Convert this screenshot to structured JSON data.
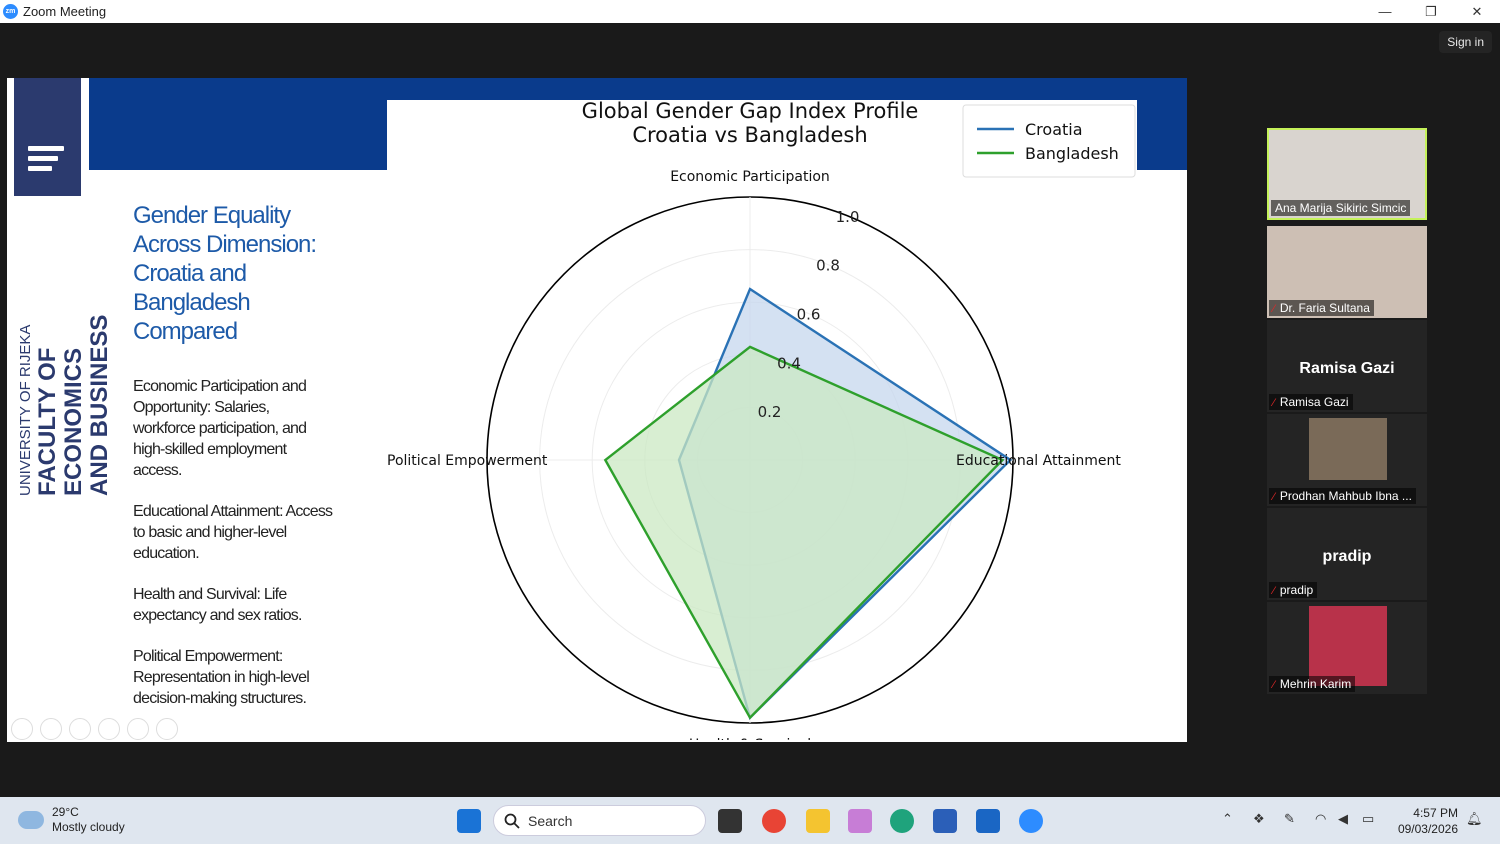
{
  "window": {
    "title": "Zoom Meeting",
    "app_icon_text": "zm",
    "minimize": "—",
    "restore": "❐",
    "close": "✕"
  },
  "meeting": {
    "signin_label": "Sign in"
  },
  "slide": {
    "vertical_line1": "UNIVERSITY OF RIJEKA",
    "vertical_line2": "FACULTY OF ECONOMICS",
    "vertical_line3": "AND BUSINESS",
    "heading": "Gender Equality Across Dimension: Croatia and Bangladesh Compared",
    "paragraphs": [
      "Economic Participation and Opportunity: Salaries, workforce participation, and high-skilled employment access.",
      "Educational Attainment: Access to basic and higher-level education.",
      "Health and Survival: Life expectancy and sex ratios.",
      "Political Empowerment: Representation in high-level decision-making structures."
    ]
  },
  "chart_data": {
    "type": "radar",
    "title_line1": "Global Gender Gap Index Profile",
    "title_line2": "Croatia vs Bangladesh",
    "axes": [
      "Economic Participation",
      "Educational Attainment",
      "Health & Survival",
      "Political Empowerment"
    ],
    "radial_ticks": [
      "0.2",
      "0.4",
      "0.6",
      "0.8",
      "1.0"
    ],
    "radial_tick_values": [
      0.2,
      0.4,
      0.6,
      0.8,
      1.0
    ],
    "rlim": [
      0,
      1.0
    ],
    "legend_position": "top-right",
    "series": [
      {
        "name": "Croatia",
        "color": "#2a72b5",
        "fill": "#c6d7ee",
        "values": [
          0.65,
          0.99,
          0.98,
          0.27
        ]
      },
      {
        "name": "Bangladesh",
        "color": "#2ea02c",
        "fill": "#cbe8c3",
        "values": [
          0.43,
          0.96,
          0.98,
          0.55
        ]
      }
    ]
  },
  "participants": [
    {
      "name": "Ana Marija Sikiric Simcic",
      "muted": false,
      "active": true,
      "big_label": ""
    },
    {
      "name": "Dr. Faria Sultana",
      "muted": true,
      "active": false,
      "big_label": ""
    },
    {
      "name": "Ramisa Gazi",
      "muted": true,
      "active": false,
      "big_label": "Ramisa Gazi"
    },
    {
      "name": "Prodhan Mahbub Ibna ...",
      "muted": true,
      "active": false,
      "big_label": ""
    },
    {
      "name": "pradip",
      "muted": true,
      "active": false,
      "big_label": "pradip"
    },
    {
      "name": "Mehrin Karim",
      "muted": true,
      "active": false,
      "big_label": ""
    }
  ],
  "taskbar": {
    "weather_temp": "29°C",
    "weather_desc": "Mostly cloudy",
    "search_placeholder": "Search",
    "time": "4:57 PM",
    "date": "09/03/2026"
  },
  "colors": {
    "slide_blue": "#0a3b8c",
    "heading_blue": "#1d5aa8",
    "active_speaker": "#c5f25a"
  }
}
